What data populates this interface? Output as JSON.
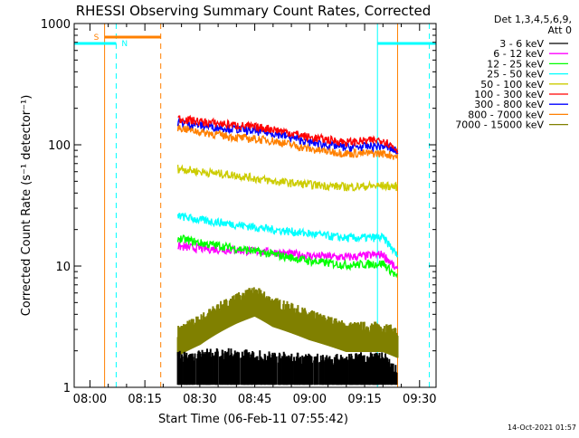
{
  "chart_data": {
    "type": "line",
    "title": "RHESSI Observing Summary Count Rates, Corrected",
    "xlabel": "Start Time (06-Feb-11 07:55:42)",
    "ylabel": "Corrected Count Rate (s⁻¹ detector⁻¹)",
    "yscale": "log",
    "ylim": [
      1,
      1000
    ],
    "xlim": [
      "07:55:42",
      "09:34:30"
    ],
    "x_ticks": [
      "08:00",
      "08:15",
      "08:30",
      "08:45",
      "09:00",
      "09:15",
      "09:30"
    ],
    "y_ticks": [
      "1",
      "10",
      "100",
      "1000"
    ],
    "legend_header": [
      "Det 1,3,4,5,6,9,",
      "Att 0"
    ],
    "legend_position": "right",
    "timestamp": "14-Oct-2021 01:57",
    "series": [
      {
        "name": "3 - 6 keV",
        "color": "#000000",
        "points": [
          [
            "08:24",
            1.6
          ],
          [
            "08:35",
            1.7
          ],
          [
            "08:50",
            1.6
          ],
          [
            "09:05",
            1.5
          ],
          [
            "09:20",
            1.6
          ],
          [
            "09:24",
            1.2
          ]
        ]
      },
      {
        "name": "6 - 12 keV",
        "color": "#ff00ff",
        "points": [
          [
            "08:24",
            14.5
          ],
          [
            "08:30",
            14
          ],
          [
            "08:40",
            13.5
          ],
          [
            "08:50",
            13
          ],
          [
            "09:00",
            12.2
          ],
          [
            "09:10",
            11.8
          ],
          [
            "09:20",
            12.5
          ],
          [
            "09:24",
            9
          ]
        ]
      },
      {
        "name": "12 - 25 keV",
        "color": "#00ff00",
        "points": [
          [
            "08:24",
            17
          ],
          [
            "08:30",
            15.5
          ],
          [
            "08:40",
            14
          ],
          [
            "08:50",
            12.5
          ],
          [
            "09:00",
            11
          ],
          [
            "09:10",
            10.2
          ],
          [
            "09:20",
            10.5
          ],
          [
            "09:24",
            8
          ]
        ]
      },
      {
        "name": "25 - 50 keV",
        "color": "#00ffff",
        "points": [
          [
            "08:24",
            26
          ],
          [
            "08:30",
            24
          ],
          [
            "08:40",
            22
          ],
          [
            "08:50",
            20
          ],
          [
            "09:00",
            18.5
          ],
          [
            "09:10",
            17
          ],
          [
            "09:20",
            17.2
          ],
          [
            "09:24",
            12
          ]
        ]
      },
      {
        "name": "50 - 100 keV",
        "color": "#cccc00",
        "points": [
          [
            "08:24",
            64
          ],
          [
            "08:30",
            60
          ],
          [
            "08:40",
            56
          ],
          [
            "08:50",
            50
          ],
          [
            "09:00",
            47
          ],
          [
            "09:10",
            45
          ],
          [
            "09:20",
            46
          ],
          [
            "09:24",
            45
          ]
        ]
      },
      {
        "name": "100 - 300 keV",
        "color": "#ff0000",
        "points": [
          [
            "08:24",
            165
          ],
          [
            "08:30",
            155
          ],
          [
            "08:40",
            145
          ],
          [
            "08:50",
            135
          ],
          [
            "09:00",
            115
          ],
          [
            "09:10",
            105
          ],
          [
            "09:20",
            110
          ],
          [
            "09:24",
            90
          ]
        ]
      },
      {
        "name": "300 - 800 keV",
        "color": "#0000ff",
        "points": [
          [
            "08:24",
            155
          ],
          [
            "08:30",
            145
          ],
          [
            "08:40",
            135
          ],
          [
            "08:50",
            125
          ],
          [
            "09:00",
            105
          ],
          [
            "09:10",
            95
          ],
          [
            "09:20",
            98
          ],
          [
            "09:24",
            88
          ]
        ]
      },
      {
        "name": "800 - 7000 keV",
        "color": "#ff8000",
        "points": [
          [
            "08:24",
            140
          ],
          [
            "08:30",
            128
          ],
          [
            "08:40",
            115
          ],
          [
            "08:50",
            108
          ],
          [
            "09:00",
            92
          ],
          [
            "09:10",
            85
          ],
          [
            "09:20",
            85
          ],
          [
            "09:24",
            80
          ]
        ]
      },
      {
        "name": "7000 - 15000 keV",
        "color": "#808000",
        "points": [
          [
            "08:24",
            2.6
          ],
          [
            "08:30",
            3.2
          ],
          [
            "08:40",
            4.8
          ],
          [
            "08:45",
            5.5
          ],
          [
            "08:50",
            4.5
          ],
          [
            "09:00",
            3.5
          ],
          [
            "09:10",
            2.8
          ],
          [
            "09:20",
            2.8
          ],
          [
            "09:24",
            2.5
          ]
        ]
      }
    ],
    "flags": {
      "saa_label": "S",
      "night_label": "N",
      "saa_color": "#ff8000",
      "night_color": "#00ffff",
      "night_intervals": [
        [
          "07:55:42",
          "08:07:10"
        ],
        [
          "09:18:30",
          "09:34:30"
        ]
      ],
      "saa_intervals": [
        [
          "08:04:00",
          "08:19:20"
        ]
      ],
      "night_solid_marks": [
        "07:55:42",
        "09:18:30"
      ],
      "night_dashed_marks": [
        "08:07:10",
        "09:32:40"
      ],
      "saa_solid_marks": [
        "08:04:00",
        "09:24:00"
      ],
      "saa_dashed_marks": [
        "08:19:20"
      ]
    }
  }
}
